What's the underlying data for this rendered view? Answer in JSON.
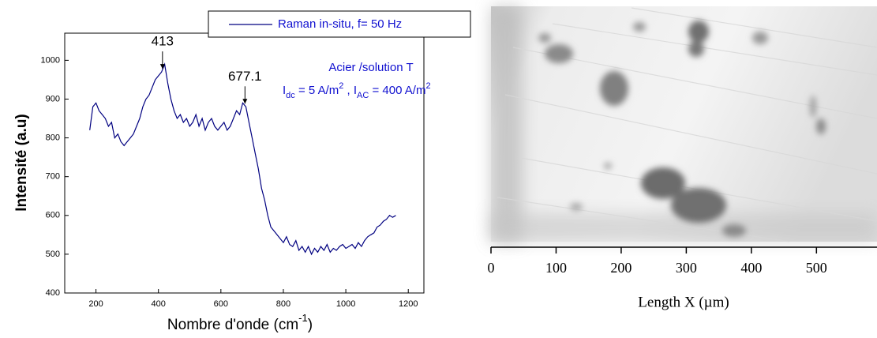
{
  "chart_data": [
    {
      "type": "line",
      "xlabel": [
        "Nombre d'onde (cm",
        "-1",
        ")"
      ],
      "ylabel": "Intensité (a.u)",
      "xlim": [
        100,
        1250
      ],
      "ylim": [
        400,
        1070
      ],
      "xticks": [
        200,
        400,
        600,
        800,
        1000,
        1200
      ],
      "yticks": [
        400,
        500,
        600,
        700,
        800,
        900,
        1000
      ],
      "legend": "upper right",
      "series": [
        {
          "name": "Raman in-situ, f= 50 Hz",
          "color": "#000080",
          "x": [
            180,
            190,
            200,
            210,
            220,
            230,
            240,
            250,
            260,
            270,
            280,
            290,
            300,
            310,
            320,
            330,
            340,
            350,
            360,
            370,
            380,
            390,
            400,
            410,
            420,
            430,
            440,
            450,
            460,
            470,
            480,
            490,
            500,
            510,
            520,
            530,
            540,
            550,
            560,
            570,
            580,
            590,
            600,
            610,
            620,
            630,
            640,
            650,
            660,
            670,
            680,
            690,
            700,
            710,
            720,
            730,
            740,
            750,
            760,
            770,
            780,
            790,
            800,
            810,
            820,
            830,
            840,
            850,
            860,
            870,
            880,
            890,
            900,
            910,
            920,
            930,
            940,
            950,
            960,
            970,
            980,
            990,
            1000,
            1010,
            1020,
            1030,
            1040,
            1050,
            1060,
            1070,
            1080,
            1090,
            1100,
            1110,
            1120,
            1130,
            1140,
            1150,
            1160
          ],
          "values": [
            820,
            880,
            890,
            870,
            860,
            850,
            830,
            840,
            800,
            810,
            790,
            780,
            790,
            800,
            810,
            830,
            850,
            880,
            900,
            910,
            930,
            950,
            960,
            970,
            990,
            940,
            900,
            870,
            850,
            860,
            840,
            850,
            830,
            840,
            860,
            830,
            850,
            820,
            840,
            850,
            830,
            820,
            830,
            840,
            820,
            830,
            850,
            870,
            860,
            890,
            880,
            840,
            800,
            760,
            720,
            670,
            640,
            600,
            570,
            560,
            550,
            540,
            530,
            545,
            525,
            520,
            535,
            510,
            520,
            505,
            520,
            500,
            515,
            505,
            520,
            510,
            525,
            505,
            515,
            510,
            520,
            525,
            515,
            520,
            525,
            515,
            530,
            520,
            535,
            545,
            550,
            555,
            570,
            575,
            585,
            590,
            600,
            595,
            600
          ]
        }
      ],
      "annotations": [
        {
          "label": "413",
          "value": 413
        },
        {
          "label": "677.1",
          "value": 677.1
        }
      ],
      "notes": {
        "title": "Acier /solution T",
        "conditions": [
          "I",
          "dc",
          " = 5 A/m",
          "2",
          " , I",
          "AC",
          " = 400 A/m",
          "2"
        ]
      }
    },
    {
      "type": "image",
      "xlabel": "Length X (µm)",
      "xlim": [
        0,
        593
      ],
      "xticks": [
        0,
        100,
        200,
        300,
        400,
        500
      ]
    }
  ]
}
